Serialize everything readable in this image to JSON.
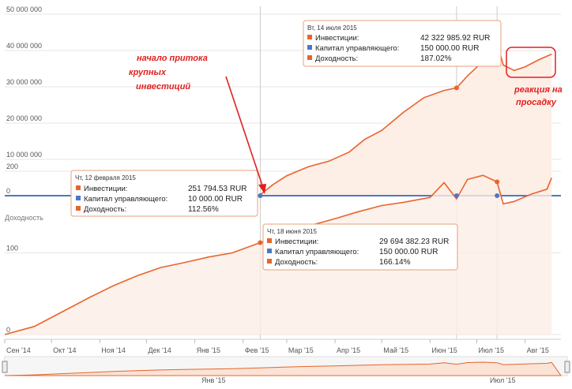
{
  "colors": {
    "series": "#e8642c",
    "flat": "#4a78c8",
    "area": "#fdeee6",
    "annotation": "#e02020"
  },
  "chart_data": [
    {
      "type": "area",
      "ylim": [
        0,
        50000000
      ],
      "y_ticks": [
        "0",
        "10 000 000",
        "20 000 000",
        "30 000 000",
        "40 000 000",
        "50 000 000"
      ],
      "series": [
        {
          "name": "Инвестиции",
          "points": [
            [
              "2015-02-12",
              251794
            ],
            [
              "2015-02-20",
              3000000
            ],
            [
              "2015-03-01",
              5500000
            ],
            [
              "2015-03-15",
              8000000
            ],
            [
              "2015-03-28",
              9500000
            ],
            [
              "2015-04-10",
              12000000
            ],
            [
              "2015-04-20",
              15500000
            ],
            [
              "2015-05-01",
              18000000
            ],
            [
              "2015-05-15",
              23000000
            ],
            [
              "2015-05-28",
              27000000
            ],
            [
              "2015-06-10",
              29000000
            ],
            [
              "2015-06-18",
              29694382
            ],
            [
              "2015-06-25",
              33000000
            ],
            [
              "2015-07-05",
              37000000
            ],
            [
              "2015-07-10",
              40500000
            ],
            [
              "2015-07-14",
              42322985
            ],
            [
              "2015-07-18",
              36000000
            ],
            [
              "2015-07-25",
              34500000
            ],
            [
              "2015-08-01",
              35500000
            ],
            [
              "2015-08-10",
              37500000
            ],
            [
              "2015-08-18",
              39000000
            ]
          ]
        },
        {
          "name": "Капитал управляющего",
          "points": [
            [
              "2014-09-01",
              0
            ],
            [
              "2015-02-12",
              10000
            ],
            [
              "2015-06-18",
              150000
            ],
            [
              "2015-07-14",
              150000
            ],
            [
              "2015-08-18",
              150000
            ]
          ]
        }
      ],
      "tooltips": [
        {
          "date": "Чт, 12 февраля 2015",
          "investments": "251 794.53  RUR",
          "capital": "10 000.00  RUR",
          "yield": "112.56%"
        },
        {
          "date": "Вт, 14 июля 2015",
          "investments": "42 322 985.92  RUR",
          "capital": "150 000.00  RUR",
          "yield": "187.02%"
        }
      ],
      "labels": {
        "investments": "Инвестиции:",
        "capital": "Капитал управляющего:",
        "yield": "Доходность:"
      }
    },
    {
      "type": "area",
      "title": "Доходность",
      "ylim": [
        0,
        230
      ],
      "y_ticks": [
        "0",
        "100",
        "200"
      ],
      "series": [
        {
          "name": "Доходность",
          "points": [
            [
              "2014-09-01",
              0
            ],
            [
              "2014-09-20",
              10
            ],
            [
              "2014-10-10",
              30
            ],
            [
              "2014-10-25",
              45
            ],
            [
              "2014-11-10",
              60
            ],
            [
              "2014-11-25",
              72
            ],
            [
              "2014-12-10",
              82
            ],
            [
              "2014-12-25",
              88
            ],
            [
              "2015-01-10",
              95
            ],
            [
              "2015-01-25",
              100
            ],
            [
              "2015-02-12",
              112.56
            ],
            [
              "2015-03-01",
              125
            ],
            [
              "2015-03-15",
              133
            ],
            [
              "2015-04-01",
              142
            ],
            [
              "2015-04-15",
              150
            ],
            [
              "2015-05-01",
              158
            ],
            [
              "2015-05-15",
              162
            ],
            [
              "2015-06-01",
              168
            ],
            [
              "2015-06-10",
              186
            ],
            [
              "2015-06-18",
              166.14
            ],
            [
              "2015-06-25",
              190
            ],
            [
              "2015-07-05",
              195
            ],
            [
              "2015-07-14",
              187.02
            ],
            [
              "2015-07-18",
              160
            ],
            [
              "2015-07-25",
              163
            ],
            [
              "2015-08-05",
              172
            ],
            [
              "2015-08-15",
              178
            ],
            [
              "2015-08-18",
              192
            ]
          ]
        }
      ],
      "tooltip": {
        "date": "Чт, 18 июня 2015",
        "investments": "29 694 382.23  RUR",
        "capital": "150 000.00  RUR",
        "yield": "166.14%"
      }
    }
  ],
  "x_axis": {
    "labels": [
      "Сен '14",
      "Окт '14",
      "Ноя '14",
      "Дек '14",
      "Янв '15",
      "Фев '15",
      "Мар '15",
      "Апр '15",
      "Май '15",
      "Июн '15",
      "Июл '15",
      "Авг '15"
    ],
    "dates": [
      "2014-09-01",
      "2014-10-01",
      "2014-11-01",
      "2014-12-01",
      "2015-01-01",
      "2015-02-01",
      "2015-03-01",
      "2015-04-01",
      "2015-05-01",
      "2015-06-01",
      "2015-07-01",
      "2015-08-01"
    ]
  },
  "navigator": {
    "labels": [
      "Янв '15",
      "Июл '15"
    ]
  },
  "annotations": {
    "inflow": [
      "начало притока",
      "крупных",
      "инвестиций"
    ],
    "reaction": [
      "реакция на",
      "просадку"
    ]
  }
}
